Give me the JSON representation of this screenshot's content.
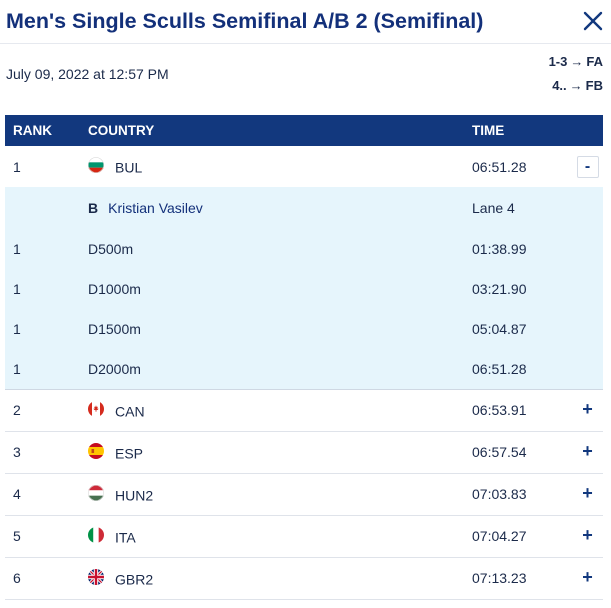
{
  "header": {
    "title": "Men's Single Sculls Semifinal A/B 2 (Semifinal)",
    "close_icon": "close-icon"
  },
  "meta": {
    "date": "July 09, 2022 at 12:57 PM",
    "progression": [
      {
        "range": "1-3",
        "arrow": "→",
        "target": "FA"
      },
      {
        "range": "4..",
        "arrow": "→",
        "target": "FB"
      }
    ]
  },
  "table": {
    "columns": {
      "rank": "RANK",
      "country": "COUNTRY",
      "time": "TIME"
    },
    "rows": [
      {
        "rank": "1",
        "country": "BUL",
        "flag": "bul-flag-icon",
        "time": "06:51.28",
        "action": "-"
      },
      {
        "rank": "2",
        "country": "CAN",
        "flag": "can-flag-icon",
        "time": "06:53.91",
        "action": "+"
      },
      {
        "rank": "3",
        "country": "ESP",
        "flag": "esp-flag-icon",
        "time": "06:57.54",
        "action": "+"
      },
      {
        "rank": "4",
        "country": "HUN2",
        "flag": "hun-flag-icon",
        "time": "07:03.83",
        "action": "+"
      },
      {
        "rank": "5",
        "country": "ITA",
        "flag": "ita-flag-icon",
        "time": "07:04.27",
        "action": "+"
      },
      {
        "rank": "6",
        "country": "GBR2",
        "flag": "gbr-flag-icon",
        "time": "07:13.23",
        "action": "+"
      }
    ],
    "expanded": {
      "crew_position": "B",
      "crew_name": "Kristian Vasilev",
      "lane": "Lane 4",
      "splits": [
        {
          "rank": "1",
          "distance": "D500m",
          "time": "01:38.99"
        },
        {
          "rank": "1",
          "distance": "D1000m",
          "time": "03:21.90"
        },
        {
          "rank": "1",
          "distance": "D1500m",
          "time": "05:04.87"
        },
        {
          "rank": "1",
          "distance": "D2000m",
          "time": "06:51.28"
        }
      ]
    }
  },
  "colors": {
    "header_bg": "#12387e",
    "title": "#13307a",
    "detail_bg": "#e6f5fc"
  }
}
